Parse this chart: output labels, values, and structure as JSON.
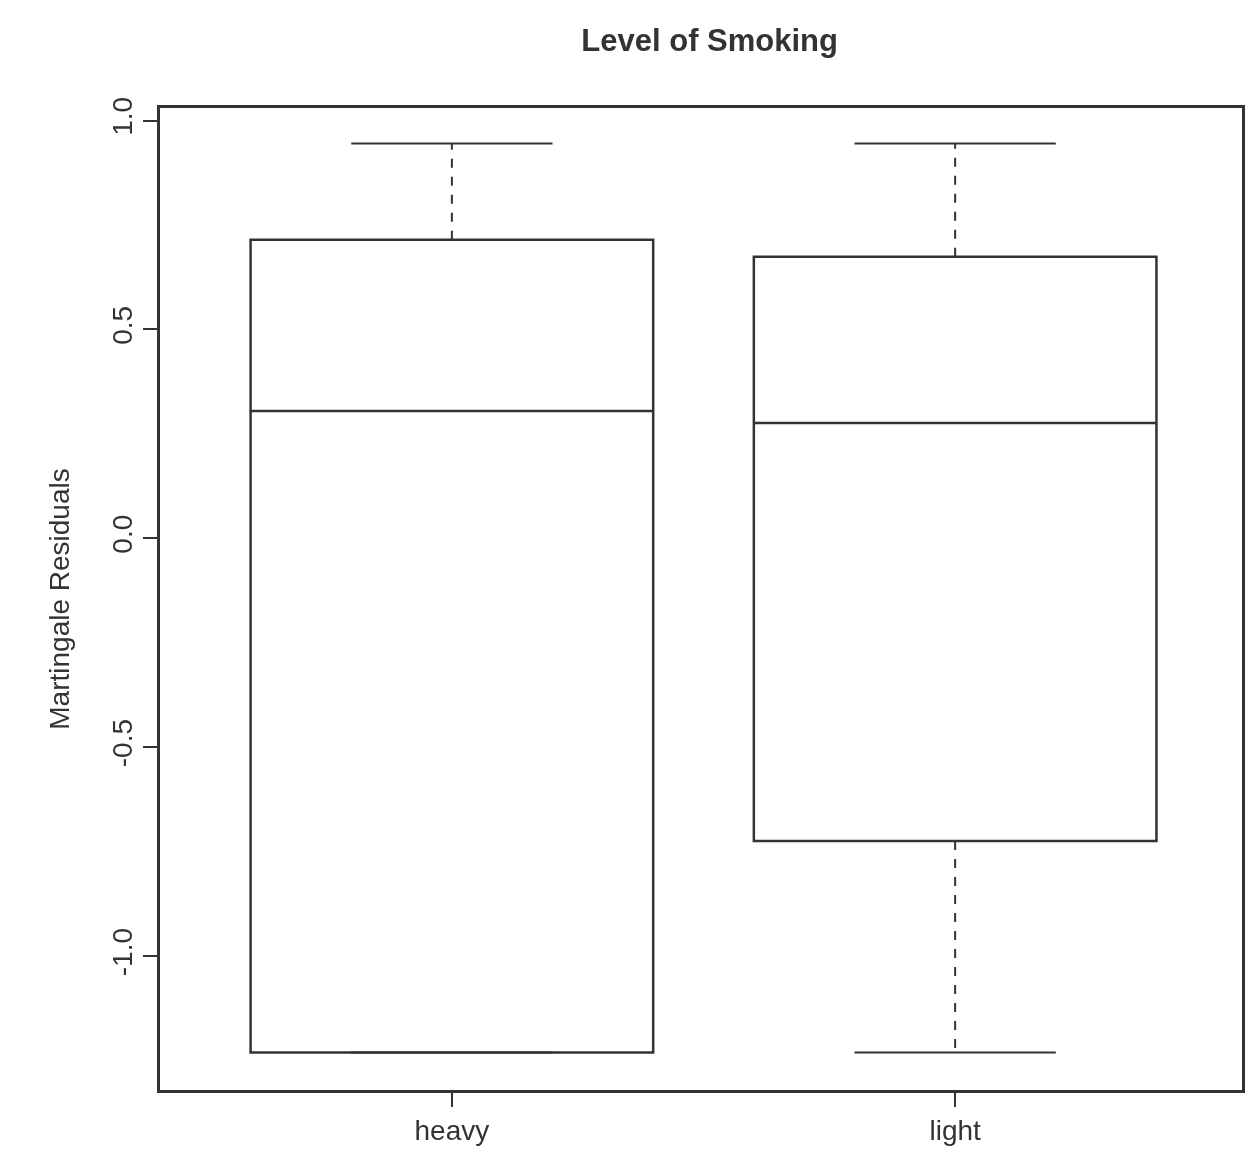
{
  "chart_data": {
    "type": "box",
    "title": "Level of Smoking",
    "ylabel": "Martingale Residuals",
    "categories": [
      "heavy",
      "light"
    ],
    "boxes": [
      {
        "low": -1.23,
        "q1": -1.23,
        "median": 0.305,
        "q3": 0.715,
        "high": 0.945
      },
      {
        "low": -1.23,
        "q1": -0.724,
        "median": 0.276,
        "q3": 0.674,
        "high": 0.945
      }
    ],
    "ylim": [
      -1.32,
      1.03
    ],
    "yticks": [
      {
        "value": -1,
        "label": "-1.0"
      },
      -0.5,
      {
        "value": 0,
        "label": "0.0"
      },
      0.5,
      {
        "value": 1,
        "label": "1.0"
      }
    ],
    "grid": false
  }
}
